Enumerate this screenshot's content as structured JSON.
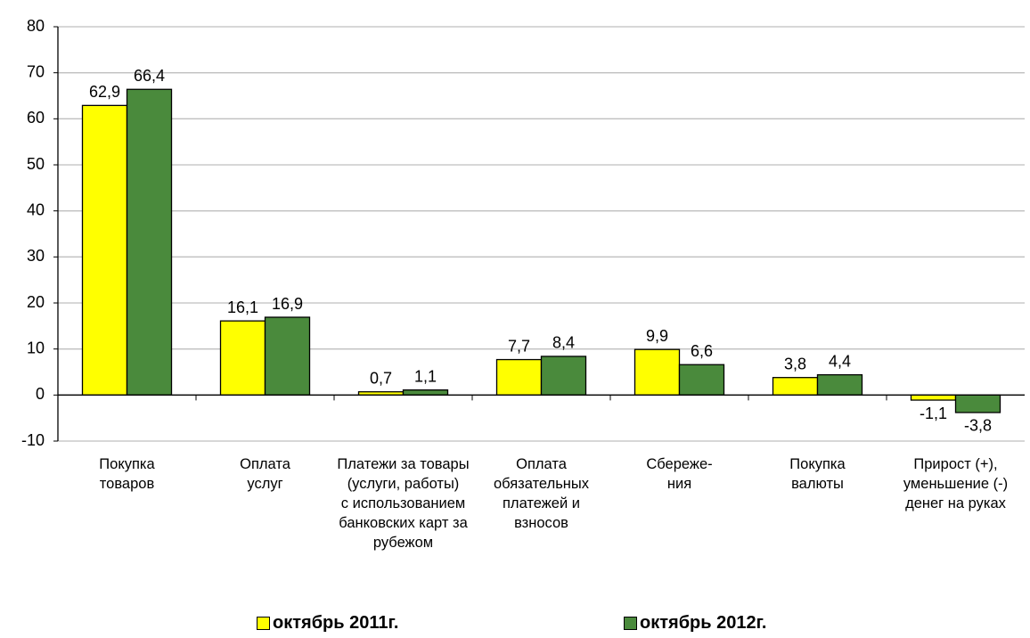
{
  "chart_data": {
    "type": "bar",
    "categories": [
      "Покупка\nтоваров",
      "Оплата\nуслуг",
      "Платежи за товары\n(услуги, работы)\nс использованием\nбанковских карт за\nрубежом",
      "Оплата\nобязательных\nплатежей и\nвзносов",
      "Сбереже-\nния",
      "Покупка\nвалюты",
      "Прирост (+),\nуменьшение (-)\nденег на руках"
    ],
    "series": [
      {
        "name": "октябрь 2011г.",
        "color": "#ffff00",
        "values": [
          62.9,
          16.1,
          0.7,
          7.7,
          9.9,
          3.8,
          -1.1
        ],
        "value_labels": [
          "62,9",
          "16,1",
          "0,7",
          "7,7",
          "9,9",
          "3,8",
          "-1,1"
        ]
      },
      {
        "name": "октябрь 2012г.",
        "color": "#4a8a3c",
        "values": [
          66.4,
          16.9,
          1.1,
          8.4,
          6.6,
          4.4,
          -3.8
        ],
        "value_labels": [
          "66,4",
          "16,9",
          "1,1",
          "8,4",
          "6,6",
          "4,4",
          "-3,8"
        ]
      }
    ],
    "ylim": [
      -10,
      80
    ],
    "yticks": [
      -10,
      0,
      10,
      20,
      30,
      40,
      50,
      60,
      70,
      80
    ],
    "grid": true,
    "legend": "bottom"
  }
}
